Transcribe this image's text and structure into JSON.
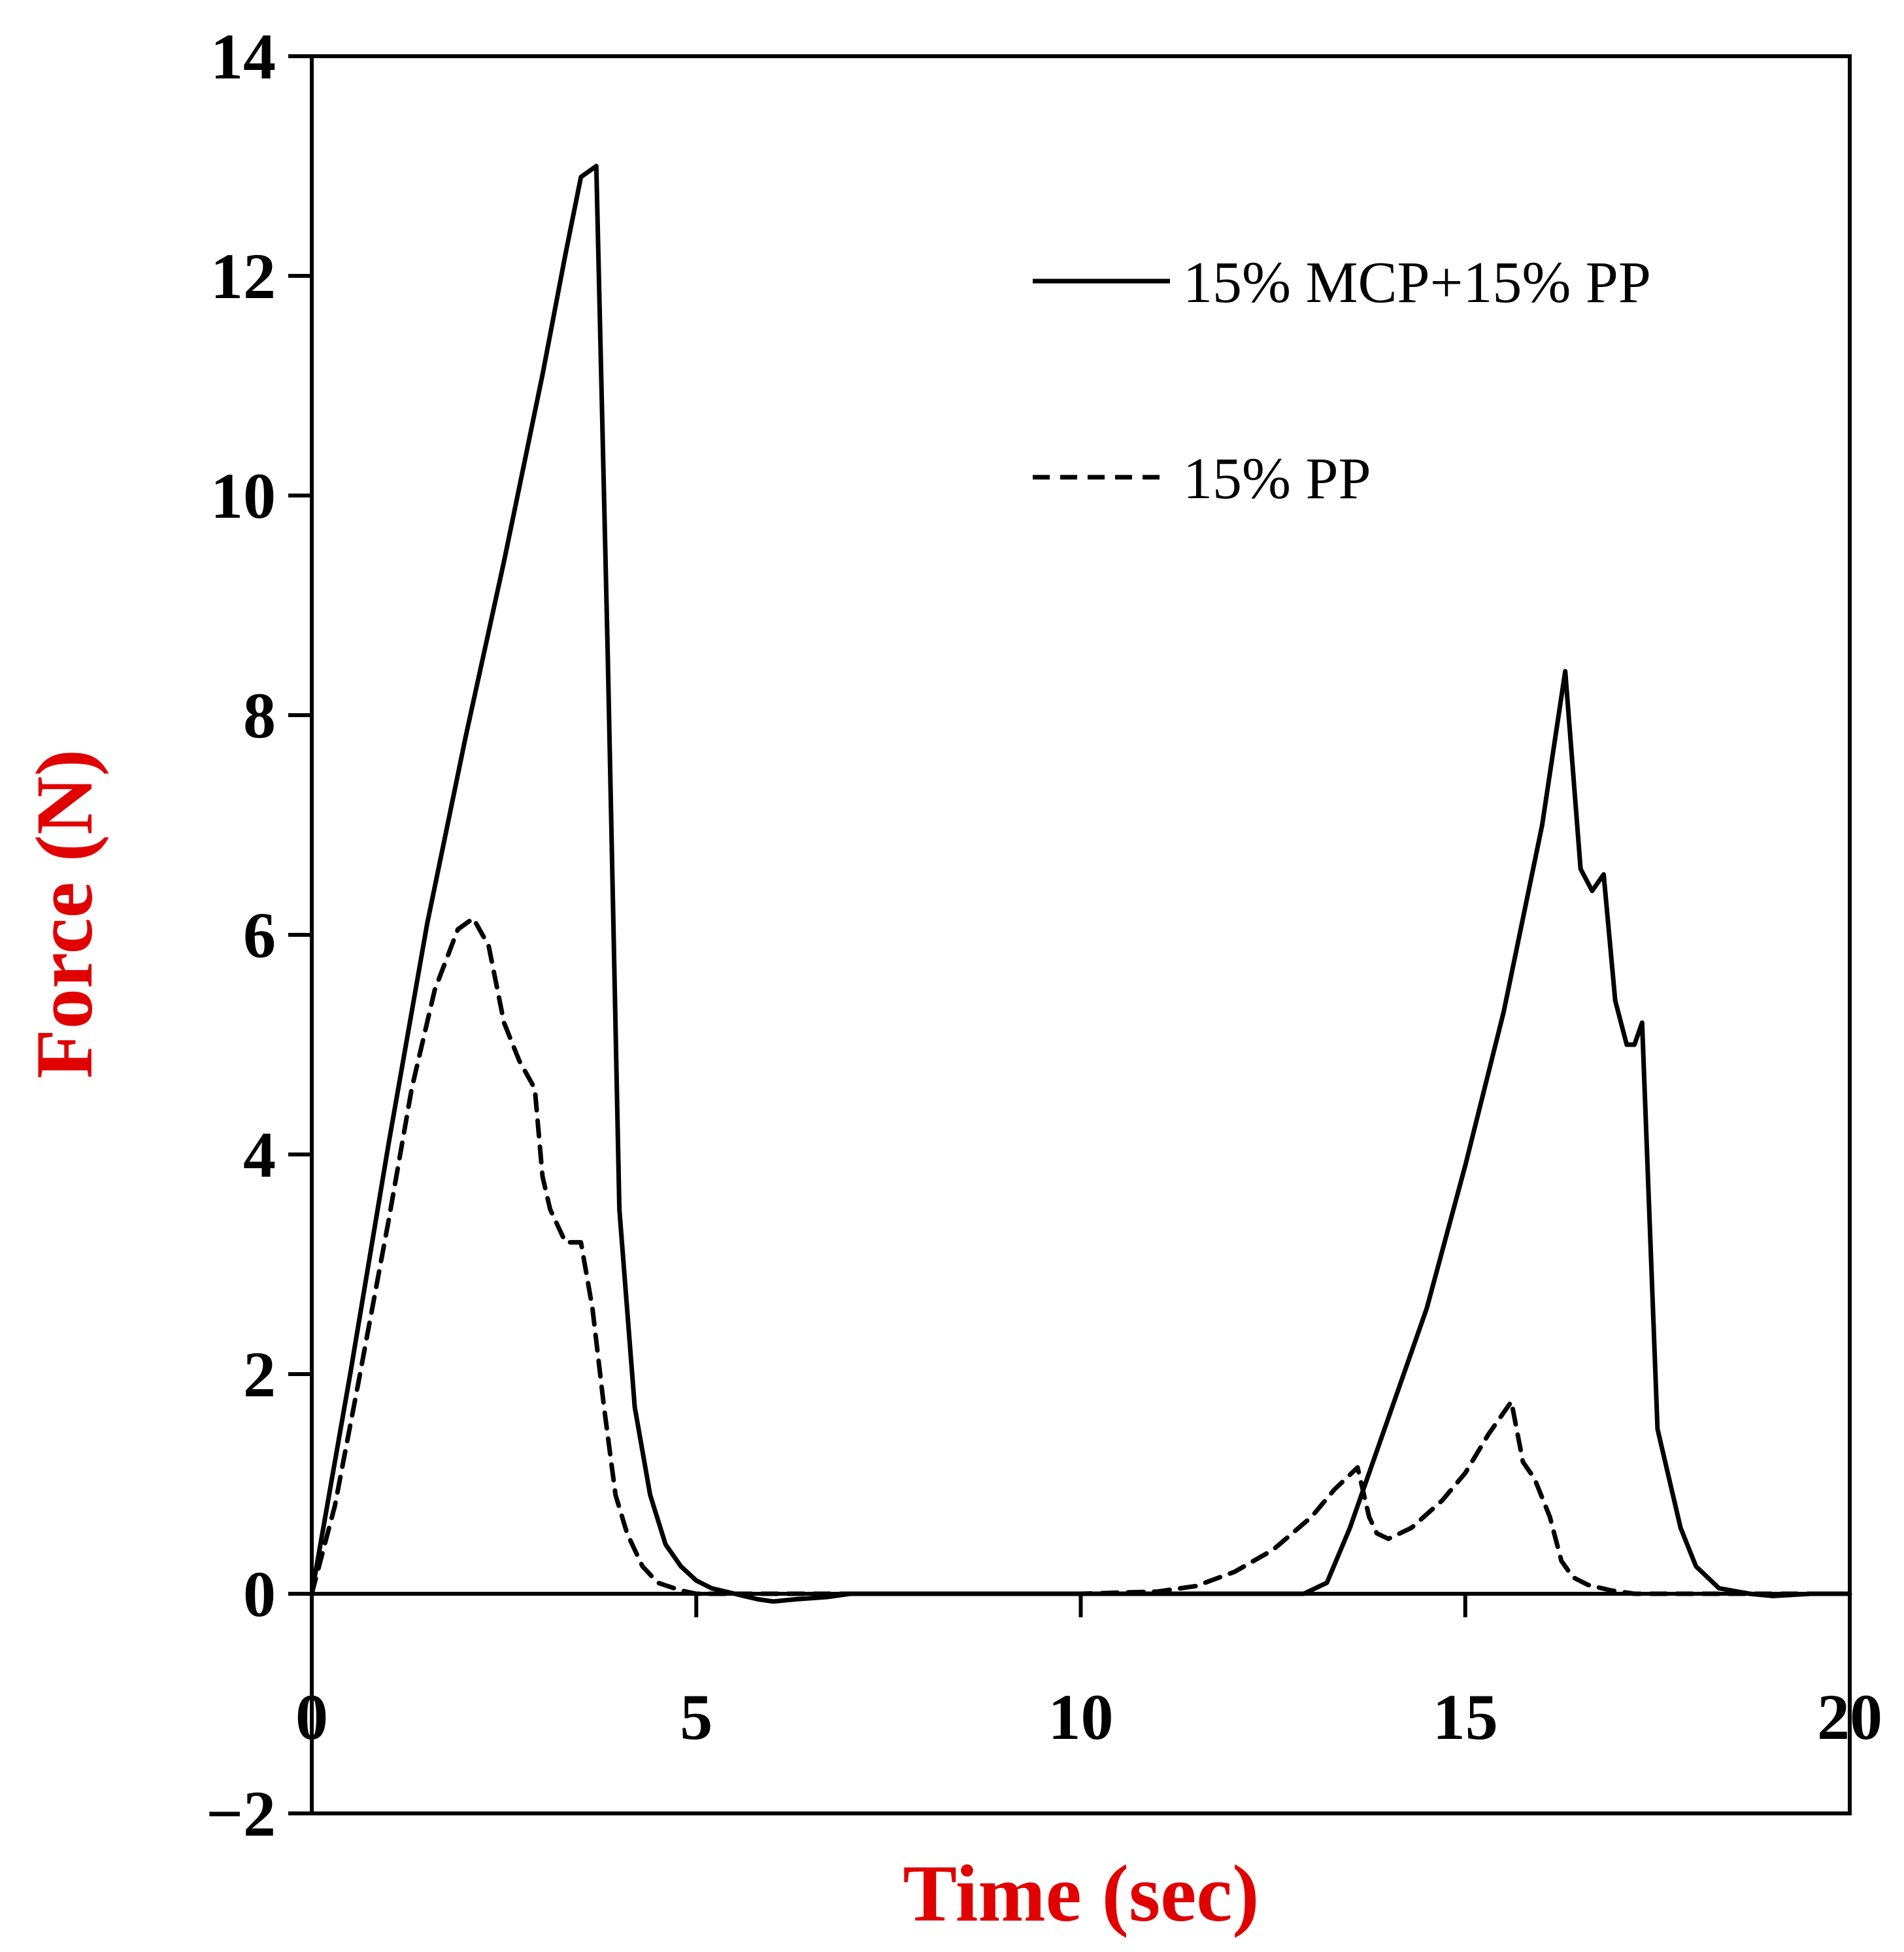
{
  "chart_data": {
    "type": "line",
    "title": "",
    "xlabel": "Time (sec)",
    "ylabel": "Force (N)",
    "xlim": [
      0,
      20
    ],
    "ylim": [
      -2,
      14
    ],
    "xticks": [
      0,
      5,
      10,
      15,
      20
    ],
    "xtick_labels": [
      "0",
      "5",
      "10",
      "15",
      "20"
    ],
    "yticks": [
      -2,
      0,
      2,
      4,
      6,
      8,
      10,
      12,
      14
    ],
    "ytick_labels": [
      "−2",
      "0",
      "2",
      "4",
      "6",
      "8",
      "10",
      "12",
      "14"
    ],
    "grid": false,
    "legend_position": "top-right",
    "colors": {
      "axis_title": "#e00000",
      "line": "#000000",
      "axes": "#000000"
    },
    "series": [
      {
        "name": "15% MCP+15% PP",
        "style": "solid",
        "x": [
          0,
          0.5,
          1,
          1.5,
          2,
          2.5,
          3,
          3.3,
          3.5,
          3.7,
          3.85,
          4.0,
          4.2,
          4.4,
          4.6,
          4.8,
          5.0,
          5.2,
          5.5,
          5.8,
          6.0,
          6.3,
          6.7,
          7,
          8,
          9,
          10,
          11,
          12,
          12.9,
          13.2,
          13.5,
          14,
          14.5,
          15,
          15.5,
          16.0,
          16.3,
          16.5,
          16.65,
          16.8,
          16.95,
          17.1,
          17.2,
          17.3,
          17.5,
          17.8,
          18.0,
          18.3,
          18.7,
          19,
          19.5,
          20
        ],
        "y": [
          0,
          2.0,
          4.1,
          6.1,
          7.8,
          9.4,
          11.1,
          12.2,
          12.9,
          13.0,
          8.5,
          3.5,
          1.7,
          0.9,
          0.45,
          0.25,
          0.12,
          0.05,
          0.0,
          -0.05,
          -0.07,
          -0.05,
          -0.03,
          0.0,
          0.0,
          0.0,
          0.0,
          0.0,
          0.0,
          0.0,
          0.1,
          0.6,
          1.6,
          2.6,
          3.9,
          5.3,
          7.0,
          8.4,
          6.6,
          6.4,
          6.55,
          5.4,
          5.0,
          5.0,
          5.2,
          1.5,
          0.6,
          0.25,
          0.05,
          0.0,
          -0.02,
          0.0,
          0.0
        ]
      },
      {
        "name": "15% PP",
        "style": "dashed",
        "x": [
          0,
          0.3,
          0.6,
          1.0,
          1.3,
          1.6,
          1.9,
          2.1,
          2.3,
          2.5,
          2.7,
          2.9,
          3.0,
          3.1,
          3.3,
          3.5,
          3.65,
          3.8,
          3.95,
          4.1,
          4.3,
          4.5,
          4.8,
          5.0,
          5.5,
          6,
          8,
          10,
          11,
          11.5,
          12,
          12.5,
          13,
          13.3,
          13.6,
          13.75,
          13.85,
          14.0,
          14.3,
          14.7,
          15.0,
          15.3,
          15.6,
          15.75,
          15.9,
          16.1,
          16.25,
          16.4,
          16.6,
          16.9,
          17.2,
          18,
          20
        ],
        "y": [
          0,
          0.8,
          1.9,
          3.4,
          4.6,
          5.5,
          6.05,
          6.15,
          5.9,
          5.2,
          4.85,
          4.6,
          3.8,
          3.5,
          3.2,
          3.2,
          2.6,
          1.7,
          0.9,
          0.55,
          0.25,
          0.1,
          0.03,
          0.0,
          0.0,
          0.0,
          0.0,
          0.0,
          0.02,
          0.07,
          0.2,
          0.4,
          0.7,
          0.95,
          1.15,
          0.7,
          0.55,
          0.5,
          0.6,
          0.85,
          1.1,
          1.45,
          1.75,
          1.2,
          1.05,
          0.7,
          0.3,
          0.15,
          0.08,
          0.03,
          0.0,
          0.0,
          0.0
        ]
      }
    ]
  }
}
